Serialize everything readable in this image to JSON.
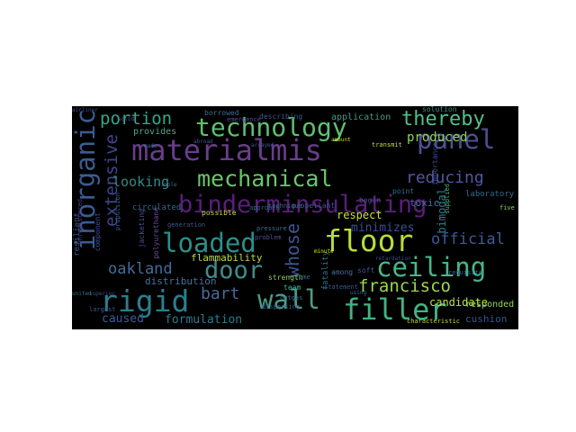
{
  "words": [
    {
      "text": "binderminsulating",
      "color": "#5a1f7a"
    },
    {
      "text": "technology",
      "color": "#5fbf70"
    },
    {
      "text": "materialmis",
      "color": "#6a3d8c"
    },
    {
      "text": "mechanical",
      "color": "#69c66d"
    },
    {
      "text": "panel",
      "color": "#4c4f96"
    },
    {
      "text": "inorganic",
      "color": "#3b5b8f"
    },
    {
      "text": "thereby",
      "color": "#4fc08a"
    },
    {
      "text": "floor",
      "color": "#b6dd3a"
    },
    {
      "text": "loaded",
      "color": "#2c8f8a"
    },
    {
      "text": "ceiling",
      "color": "#45b788"
    },
    {
      "text": "door",
      "color": "#3f8c8b"
    },
    {
      "text": "wall",
      "color": "#4a9d88"
    },
    {
      "text": "filler",
      "color": "#41b482"
    },
    {
      "text": "rigid",
      "color": "#2a7f8e"
    },
    {
      "text": "bart",
      "color": "#4a6a9b"
    },
    {
      "text": "whose",
      "color": "#3d548f"
    },
    {
      "text": "francisco",
      "color": "#9cd84c"
    },
    {
      "text": "oakland",
      "color": "#406e9c"
    },
    {
      "text": "portion",
      "color": "#2ea98c"
    },
    {
      "text": "reducing",
      "color": "#4f56a0"
    },
    {
      "text": "extensive",
      "color": "#40458a"
    },
    {
      "text": "official",
      "color": "#3d5a9a"
    },
    {
      "text": "produced",
      "color": "#8fd456"
    },
    {
      "text": "looking",
      "color": "#2f8c88"
    },
    {
      "text": "minimizes",
      "color": "#3d4d98"
    },
    {
      "text": "formulation",
      "color": "#2a7b8e"
    },
    {
      "text": "candidate",
      "color": "#bfe23b"
    },
    {
      "text": "caused",
      "color": "#3d5b9d"
    },
    {
      "text": "flammability",
      "color": "#bdd848"
    },
    {
      "text": "distribution",
      "color": "#4670a1"
    },
    {
      "text": "bimodal",
      "color": "#2f7f8b"
    },
    {
      "text": "cushion",
      "color": "#31578d"
    },
    {
      "text": "application",
      "color": "#3c9c88"
    },
    {
      "text": "respect",
      "color": "#c7e02f"
    },
    {
      "text": "circulated",
      "color": "#2c6c8c"
    },
    {
      "text": "provides",
      "color": "#4fa78b"
    },
    {
      "text": "possible",
      "color": "#c7d73a"
    },
    {
      "text": "team",
      "color": "#3ab591"
    },
    {
      "text": "toxic",
      "color": "#4b6ea0"
    },
    {
      "text": "laboratory",
      "color": "#2e6c90"
    },
    {
      "text": "strength",
      "color": "#8ccf52"
    },
    {
      "text": "responded",
      "color": "#8cd45a"
    },
    {
      "text": "describing",
      "color": "#3c5b96"
    },
    {
      "text": "solution",
      "color": "#3e9387"
    },
    {
      "text": "technique",
      "color": "#486590"
    },
    {
      "text": "propellant",
      "color": "#3b5a91"
    },
    {
      "text": "approach",
      "color": "#2d6a8b"
    },
    {
      "text": "fatality",
      "color": "#2e6f8e"
    },
    {
      "text": "among",
      "color": "#4a6aa0"
    },
    {
      "text": "statement",
      "color": "#3a5a90"
    },
    {
      "text": "point",
      "color": "#2f6e8c"
    },
    {
      "text": "soft",
      "color": "#3b5d93"
    },
    {
      "text": "begin",
      "color": "#4a4c92"
    },
    {
      "text": "borrowed",
      "color": "#3e6c9b"
    },
    {
      "text": "emergence",
      "color": "#5b4a94"
    },
    {
      "text": "generation",
      "color": "#3a5a8e"
    },
    {
      "text": "problem",
      "color": "#4d5595"
    },
    {
      "text": "fume",
      "color": "#3b6a90"
    },
    {
      "text": "outgas",
      "color": "#3a6b8d"
    },
    {
      "text": "characteristic",
      "color": "#c2db3c"
    },
    {
      "text": "polyurethane",
      "color": "#6a4c9a"
    },
    {
      "text": "jacketing",
      "color": "#4a5296"
    },
    {
      "text": "propulsion",
      "color": "#3a5e92"
    },
    {
      "text": "component",
      "color": "#3f4f95"
    },
    {
      "text": "resilient",
      "color": "#3d5a92"
    },
    {
      "text": "airliner",
      "color": "#41508f"
    },
    {
      "text": "unregistered",
      "color": "#4d3f90"
    },
    {
      "text": "largest",
      "color": "#3a5a8f"
    },
    {
      "text": "superior",
      "color": "#3f4c8f"
    },
    {
      "text": "united",
      "color": "#2f6f8b"
    },
    {
      "text": "amount",
      "color": "#c7d932"
    },
    {
      "text": "requisite",
      "color": "#3d6093"
    },
    {
      "text": "minute",
      "color": "#d8e21c"
    },
    {
      "text": "retardation",
      "color": "#3f4a8e"
    },
    {
      "text": "using",
      "color": "#3a6d92"
    },
    {
      "text": "supplied",
      "color": "#52b57d"
    },
    {
      "text": "five",
      "color": "#8ed450"
    },
    {
      "text": "made",
      "color": "#3a6c93"
    },
    {
      "text": "solid",
      "color": "#4f5a97"
    },
    {
      "text": "abroad",
      "color": "#4a5594"
    },
    {
      "text": "arrayed",
      "color": "#3d568f"
    },
    {
      "text": "importance",
      "color": "#3e4b90"
    },
    {
      "text": "pressure",
      "color": "#3b7290"
    },
    {
      "text": "simple",
      "color": "#3a6a8e"
    },
    {
      "text": "transmit",
      "color": "#c9df2e"
    },
    {
      "text": "dispersing",
      "color": "#3a5a90"
    }
  ]
}
